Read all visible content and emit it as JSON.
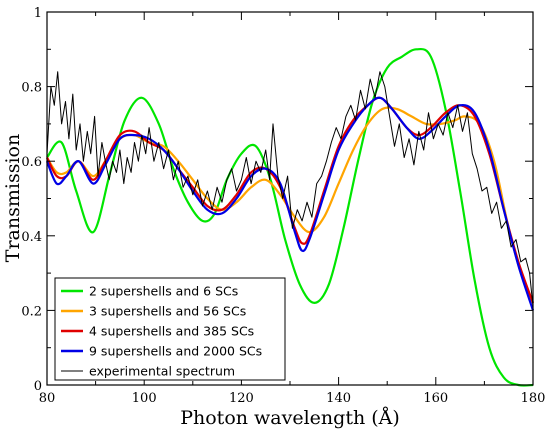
{
  "chart_data": {
    "type": "line",
    "xlabel": "Photon wavelength (Å)",
    "ylabel": "Transmission",
    "xlim": [
      80,
      180
    ],
    "ylim": [
      0,
      1
    ],
    "xticks": [
      "80",
      "100",
      "120",
      "140",
      "160",
      "180"
    ],
    "yticks": [
      "0",
      "0.2",
      "0.4",
      "0.6",
      "0.8",
      "1"
    ],
    "grid": false,
    "legend_position": "bottom-left",
    "series": [
      {
        "name": "2 supershells and 6 SCs",
        "color": "#00e600",
        "x": [
          80,
          83,
          86,
          89.5,
          93,
          96,
          99.5,
          103,
          106,
          109,
          112,
          114.5,
          117,
          120,
          123,
          126,
          129,
          132,
          135,
          138,
          141,
          144,
          147,
          150,
          153,
          156,
          159,
          162,
          165,
          168,
          171,
          174,
          177,
          180
        ],
        "y": [
          0.61,
          0.65,
          0.52,
          0.41,
          0.57,
          0.71,
          0.77,
          0.7,
          0.58,
          0.49,
          0.44,
          0.46,
          0.55,
          0.62,
          0.64,
          0.55,
          0.39,
          0.27,
          0.22,
          0.27,
          0.42,
          0.6,
          0.76,
          0.85,
          0.88,
          0.9,
          0.88,
          0.74,
          0.52,
          0.28,
          0.1,
          0.02,
          0.0,
          0.0
        ]
      },
      {
        "name": "3 supershells and 56 SCs",
        "color": "#ffa500",
        "x": [
          80,
          82,
          84,
          86.5,
          89.5,
          92,
          95,
          98,
          101,
          104,
          107,
          110,
          113,
          116,
          119,
          122,
          125,
          128,
          131,
          134,
          137,
          140,
          143,
          146,
          149,
          152,
          155,
          158,
          161,
          164,
          166,
          169,
          172,
          175,
          178,
          180
        ],
        "y": [
          0.61,
          0.57,
          0.57,
          0.6,
          0.56,
          0.6,
          0.66,
          0.67,
          0.65,
          0.64,
          0.6,
          0.55,
          0.5,
          0.47,
          0.49,
          0.53,
          0.55,
          0.51,
          0.45,
          0.41,
          0.45,
          0.54,
          0.63,
          0.7,
          0.74,
          0.74,
          0.72,
          0.7,
          0.7,
          0.71,
          0.72,
          0.7,
          0.6,
          0.42,
          0.28,
          0.22
        ]
      },
      {
        "name": "4 supershells and 385 SCs",
        "color": "#e00000",
        "x": [
          80,
          82,
          84,
          86.5,
          89.5,
          92,
          95,
          98,
          101,
          104,
          107,
          110,
          113,
          116,
          119,
          122,
          125,
          128,
          131,
          132.5,
          134,
          137,
          140,
          143,
          146,
          148.5,
          151,
          154,
          156.5,
          159,
          162,
          165,
          168,
          171,
          174,
          177,
          180
        ],
        "y": [
          0.61,
          0.56,
          0.56,
          0.6,
          0.55,
          0.6,
          0.67,
          0.68,
          0.65,
          0.63,
          0.58,
          0.53,
          0.48,
          0.47,
          0.51,
          0.57,
          0.58,
          0.53,
          0.42,
          0.38,
          0.4,
          0.52,
          0.64,
          0.71,
          0.75,
          0.77,
          0.74,
          0.69,
          0.67,
          0.69,
          0.73,
          0.75,
          0.72,
          0.62,
          0.47,
          0.33,
          0.22
        ]
      },
      {
        "name": "9 supershells and 2000 SCs",
        "color": "#0000e6",
        "x": [
          80,
          82,
          84,
          86.5,
          89.5,
          92,
          95,
          98,
          101,
          104,
          107,
          110,
          113,
          116,
          119,
          122,
          125,
          128,
          131,
          132.5,
          134,
          137,
          140,
          143,
          146,
          148.5,
          151,
          154,
          156.5,
          159,
          162,
          165,
          168,
          171,
          174,
          177,
          180
        ],
        "y": [
          0.6,
          0.54,
          0.56,
          0.6,
          0.54,
          0.59,
          0.66,
          0.67,
          0.66,
          0.63,
          0.58,
          0.52,
          0.47,
          0.46,
          0.5,
          0.56,
          0.58,
          0.54,
          0.41,
          0.36,
          0.39,
          0.51,
          0.63,
          0.7,
          0.75,
          0.77,
          0.74,
          0.69,
          0.66,
          0.68,
          0.72,
          0.75,
          0.73,
          0.63,
          0.47,
          0.32,
          0.2
        ]
      },
      {
        "name": "experimental spectrum",
        "color": "#000000",
        "x": [
          80,
          80.8,
          81.5,
          82.2,
          83,
          83.8,
          84.5,
          85.3,
          86,
          86.8,
          87.5,
          88.3,
          89,
          89.8,
          90.5,
          91.3,
          92,
          92.8,
          93.5,
          94.3,
          95,
          95.8,
          96.5,
          97.3,
          98,
          98.8,
          99.5,
          100.3,
          101,
          102,
          103,
          104,
          105,
          106,
          107,
          108,
          109,
          110,
          111,
          112,
          113,
          114,
          115,
          116,
          117,
          118,
          119,
          120,
          121,
          122,
          123,
          124,
          125,
          125.8,
          126.5,
          127.5,
          128.5,
          129.5,
          130.5,
          131.5,
          132.5,
          133.5,
          134.5,
          135.5,
          136.5,
          137.5,
          138.5,
          139.5,
          140.5,
          141.5,
          142.5,
          143.5,
          144.5,
          145.5,
          146.5,
          147.5,
          148.5,
          149.5,
          150.5,
          151.5,
          152.5,
          153.5,
          154.5,
          155.5,
          156.5,
          157.5,
          158.5,
          159.5,
          160.5,
          161.5,
          162.5,
          163.5,
          164.5,
          165.5,
          166.5,
          167.5,
          168.5,
          169.5,
          170.5,
          171.5,
          172.5,
          173.5,
          174.5,
          175.5,
          176.5,
          177.5,
          178.5,
          179.3,
          180
        ],
        "y": [
          0.62,
          0.8,
          0.75,
          0.84,
          0.7,
          0.76,
          0.66,
          0.78,
          0.63,
          0.7,
          0.6,
          0.68,
          0.62,
          0.72,
          0.56,
          0.65,
          0.6,
          0.55,
          0.6,
          0.57,
          0.63,
          0.54,
          0.61,
          0.57,
          0.65,
          0.6,
          0.67,
          0.62,
          0.69,
          0.6,
          0.65,
          0.58,
          0.63,
          0.55,
          0.6,
          0.53,
          0.56,
          0.51,
          0.55,
          0.48,
          0.52,
          0.47,
          0.53,
          0.49,
          0.55,
          0.58,
          0.52,
          0.55,
          0.61,
          0.54,
          0.6,
          0.57,
          0.63,
          0.55,
          0.7,
          0.56,
          0.5,
          0.56,
          0.42,
          0.47,
          0.44,
          0.49,
          0.45,
          0.54,
          0.56,
          0.6,
          0.65,
          0.69,
          0.66,
          0.72,
          0.75,
          0.71,
          0.79,
          0.74,
          0.82,
          0.77,
          0.84,
          0.8,
          0.72,
          0.64,
          0.7,
          0.61,
          0.66,
          0.59,
          0.68,
          0.63,
          0.73,
          0.66,
          0.7,
          0.67,
          0.73,
          0.69,
          0.75,
          0.68,
          0.73,
          0.62,
          0.58,
          0.52,
          0.53,
          0.46,
          0.49,
          0.42,
          0.44,
          0.37,
          0.39,
          0.33,
          0.34,
          0.3,
          0.21
        ]
      }
    ]
  }
}
